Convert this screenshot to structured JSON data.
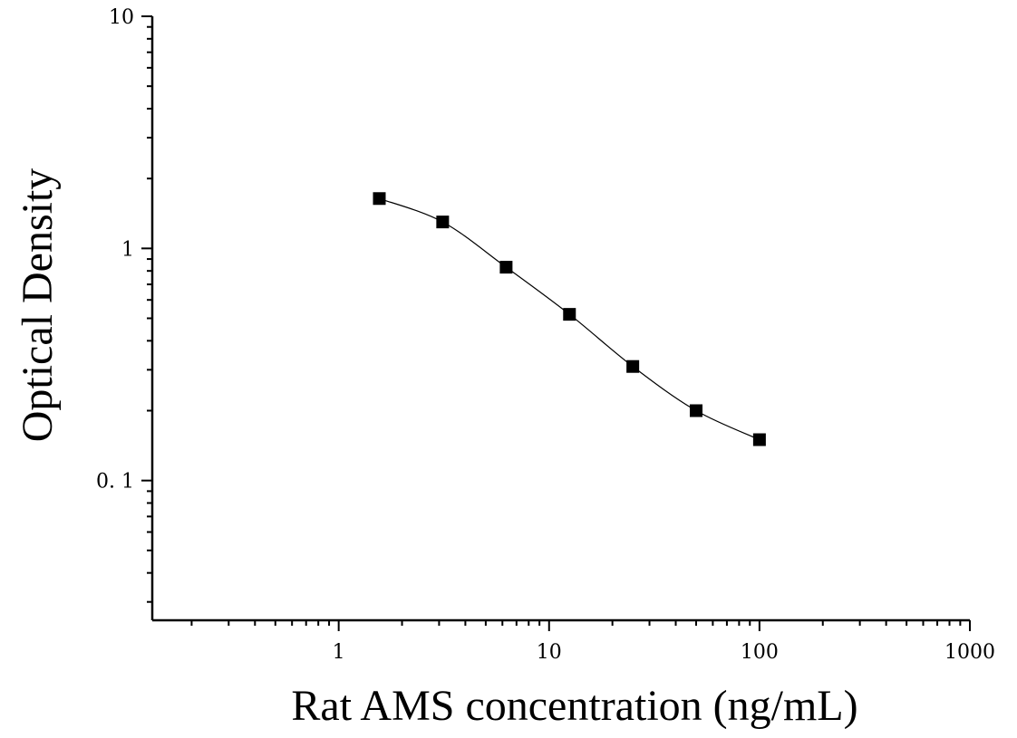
{
  "chart_data": {
    "type": "scatter",
    "title": "",
    "xlabel": "Rat AMS concentration (ng/mL)",
    "ylabel": "Optical Density",
    "x_scale": "log",
    "y_scale": "log",
    "xlim": [
      0.13,
      1000
    ],
    "ylim": [
      0.025,
      10
    ],
    "x_ticks": [
      {
        "value": 1,
        "label": "1"
      },
      {
        "value": 10,
        "label": "10"
      },
      {
        "value": 100,
        "label": "100"
      },
      {
        "value": 1000,
        "label": "1000"
      }
    ],
    "y_ticks": [
      {
        "value": 10,
        "label": "10"
      },
      {
        "value": 1,
        "label": "1"
      },
      {
        "value": 0.1,
        "label": "0. 1"
      }
    ],
    "grid": false,
    "legend": "none",
    "marker": "square",
    "fit": "4-parameter logistic curve",
    "series": [
      {
        "x": [
          1.56,
          3.12,
          6.25,
          12.5,
          25,
          50,
          100
        ],
        "y": [
          1.64,
          1.3,
          0.83,
          0.52,
          0.31,
          0.2,
          0.15
        ]
      }
    ],
    "colors": {
      "marker": "#000000",
      "line": "#000000"
    }
  }
}
